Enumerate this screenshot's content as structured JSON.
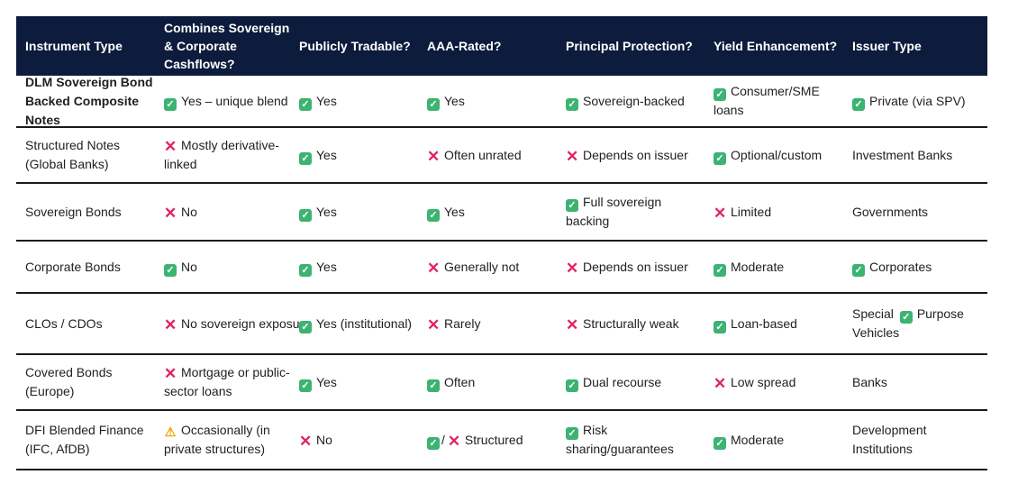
{
  "headers": [
    "Instrument Type",
    "Combines Sovereign & Corporate Cashflows?",
    "Publicly Tradable?",
    "AAA-Rated?",
    "Principal Protection?",
    "Yield Enhancement?",
    "Issuer Type"
  ],
  "rows": [
    {
      "name": "DLM Sovereign Bond Backed Composite Notes",
      "combines": "Yes – unique blend",
      "tradable": "Yes",
      "aaa": "Yes",
      "protection": "Sovereign-backed",
      "yield": "Consumer/SME loans",
      "issuer": "Private (via SPV)"
    },
    {
      "name": "Structured Notes (Global Banks)",
      "combines": "Mostly derivative-linked",
      "tradable": "Yes",
      "aaa": "Often unrated",
      "protection": "Depends on issuer",
      "yield": "Optional/custom",
      "issuer": "Investment Banks"
    },
    {
      "name": "Sovereign Bonds",
      "combines": "No",
      "tradable": "Yes",
      "aaa": "Yes",
      "protection": "Full sovereign backing",
      "yield": "Limited",
      "issuer": "Governments"
    },
    {
      "name": "Corporate Bonds",
      "combines": "No",
      "tradable": "Yes",
      "aaa": "Generally not",
      "protection": "Depends on issuer",
      "yield": "Moderate",
      "issuer": "Corporates"
    },
    {
      "name": "CLOs / CDOs",
      "combines": "No sovereign exposure",
      "tradable": "Yes (institutional)",
      "aaa": "Rarely",
      "protection": "Structurally weak",
      "yield": "Loan-based",
      "issuer_a": "Special",
      "issuer_b": "Purpose Vehicles"
    },
    {
      "name": "Covered Bonds (Europe)",
      "combines": "Mortgage or public-sector loans",
      "tradable": "Yes",
      "aaa": "Often",
      "protection": "Dual recourse",
      "yield": "Low spread",
      "issuer": "Banks"
    },
    {
      "name": "DFI Blended Finance (IFC, AfDB)",
      "combines": "Occasionally (in private structures)",
      "tradable": "No",
      "aaa_sep": "/",
      "aaa": "Structured",
      "protection": "Risk sharing/guarantees",
      "yield": "Moderate",
      "issuer": "Development Institutions"
    }
  ],
  "colors": {
    "header_bg": "#0d1b3c",
    "check": "#3cb371",
    "cross": "#e0245e",
    "warn": "#f0a500"
  },
  "icons": {
    "check": "check-mark-icon",
    "cross": "cross-mark-icon",
    "warn": "warning-icon"
  }
}
